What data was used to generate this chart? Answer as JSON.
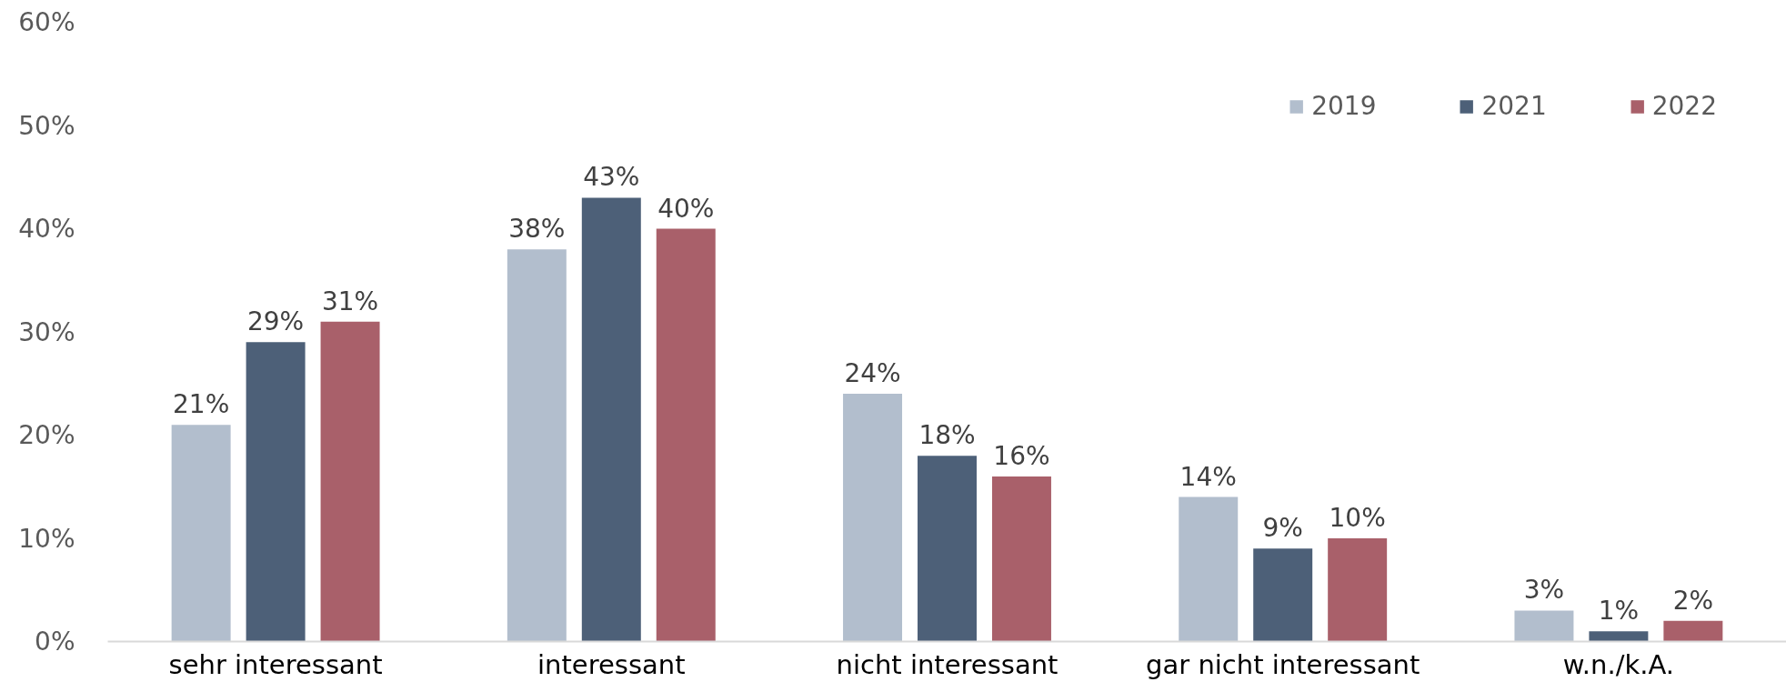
{
  "chart_data": {
    "type": "bar",
    "categories": [
      "sehr interessant",
      "interessant",
      "nicht interessant",
      "gar nicht interessant",
      "w.n./k.A."
    ],
    "series": [
      {
        "name": "2019",
        "color": "#b2becd",
        "values": [
          21,
          38,
          24,
          14,
          3
        ],
        "value_labels": [
          "21%",
          "38%",
          "24%",
          "14%",
          "3%"
        ]
      },
      {
        "name": "2021",
        "color": "#4d6078",
        "values": [
          29,
          43,
          18,
          9,
          1
        ],
        "value_labels": [
          "29%",
          "43%",
          "18%",
          "9%",
          "1%"
        ]
      },
      {
        "name": "2022",
        "color": "#a9606a",
        "values": [
          31,
          40,
          16,
          10,
          2
        ],
        "value_labels": [
          "31%",
          "40%",
          "16%",
          "10%",
          "2%"
        ]
      }
    ],
    "ylim": [
      0,
      60
    ],
    "yticks": [
      {
        "value": 0,
        "label": "0%"
      },
      {
        "value": 10,
        "label": "10%"
      },
      {
        "value": 20,
        "label": "20%"
      },
      {
        "value": 30,
        "label": "30%"
      },
      {
        "value": 40,
        "label": "40%"
      },
      {
        "value": 50,
        "label": "50%"
      },
      {
        "value": 60,
        "label": "60%"
      }
    ],
    "legend": "top right"
  }
}
